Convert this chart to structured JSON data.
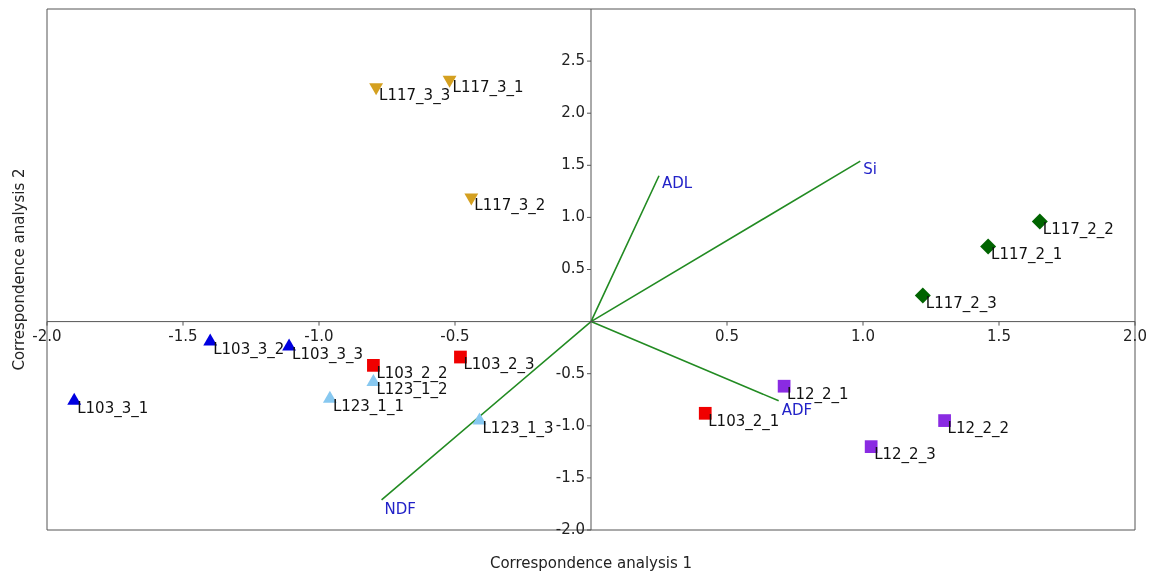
{
  "chart_data": {
    "type": "scatter",
    "xlabel": "Correspondence analysis 1",
    "ylabel": "Correspondence analysis 2",
    "xlim": [
      -2,
      2
    ],
    "ylim": [
      -2,
      3
    ],
    "xticks": [
      {
        "value": -2,
        "label": "-2.0"
      },
      {
        "value": -1.5,
        "label": "-1.5"
      },
      {
        "value": -1,
        "label": "-1.0"
      },
      {
        "value": -0.5,
        "label": "-0.5"
      },
      {
        "value": 0.5,
        "label": "0.5"
      },
      {
        "value": 1,
        "label": "1.0"
      },
      {
        "value": 1.5,
        "label": "1.5"
      },
      {
        "value": 2,
        "label": "2.0"
      }
    ],
    "yticks": [
      {
        "value": -2,
        "label": "-2.0"
      },
      {
        "value": -1.5,
        "label": "-1.5"
      },
      {
        "value": -1,
        "label": "-1.0"
      },
      {
        "value": -0.5,
        "label": "-0.5"
      },
      {
        "value": 0.5,
        "label": "0.5"
      },
      {
        "value": 1,
        "label": "1.0"
      },
      {
        "value": 1.5,
        "label": "1.5"
      },
      {
        "value": 2,
        "label": "2.0"
      },
      {
        "value": 2.5,
        "label": "2.5"
      }
    ],
    "legend": false,
    "series": [
      {
        "type": "scatter",
        "marker": "triangle",
        "color": "#0000e0",
        "x": [
          -1.9,
          -1.4,
          -1.11
        ],
        "values": [
          -0.76,
          -0.19,
          -0.24
        ]
      },
      {
        "type": "scatter",
        "marker": "triangle",
        "color": "#87c8f0",
        "x": [
          -0.96,
          -0.8,
          -0.41
        ],
        "values": [
          -0.74,
          -0.58,
          -0.95
        ]
      },
      {
        "type": "scatter",
        "marker": "triangle_down",
        "color": "#d4a020",
        "x": [
          -0.52,
          -0.44,
          -0.79
        ],
        "values": [
          2.32,
          1.19,
          2.25
        ]
      },
      {
        "type": "scatter",
        "marker": "square",
        "color": "#f00000",
        "x": [
          0.42,
          -0.8,
          -0.48
        ],
        "values": [
          -0.88,
          -0.42,
          -0.34
        ]
      },
      {
        "type": "scatter",
        "marker": "square",
        "color": "#8a2be2",
        "x": [
          0.71,
          1.3,
          1.03
        ],
        "values": [
          -0.62,
          -0.95,
          -1.2
        ]
      },
      {
        "type": "scatter",
        "marker": "diamond",
        "color": "#006400",
        "x": [
          1.46,
          1.65,
          1.22
        ],
        "values": [
          0.72,
          0.96,
          0.25
        ]
      },
      {
        "type": "line",
        "marker": "none",
        "color": "#228b22",
        "x": [
          0,
          0.25,
          null,
          0,
          0.99,
          null,
          0,
          0.69,
          null,
          0,
          -0.77
        ],
        "values": [
          0,
          1.4,
          null,
          0,
          1.54,
          null,
          0,
          -0.76,
          null,
          0,
          -1.71
        ]
      }
    ],
    "annotations": [
      {
        "text": "ADL",
        "x": 0.25,
        "y": 1.4
      },
      {
        "text": "Si",
        "x": 0.99,
        "y": 1.54
      },
      {
        "text": "ADF",
        "x": 0.69,
        "y": -0.76
      },
      {
        "text": "NDF",
        "x": -0.77,
        "y": -1.71
      },
      {
        "text": "L103_3_1",
        "x": -1.9,
        "y": -0.76
      },
      {
        "text": "L103_3_2",
        "x": -1.4,
        "y": -0.19
      },
      {
        "text": "L103_3_3",
        "x": -1.11,
        "y": -0.24
      },
      {
        "text": "L123_1_1",
        "x": -0.96,
        "y": -0.74
      },
      {
        "text": "L123_1_2",
        "x": -0.8,
        "y": -0.58
      },
      {
        "text": "L123_1_3",
        "x": -0.41,
        "y": -0.95
      },
      {
        "text": "L117_3_1",
        "x": -0.52,
        "y": 2.32
      },
      {
        "text": "L117_3_2",
        "x": -0.44,
        "y": 1.19
      },
      {
        "text": "L117_3_3",
        "x": -0.79,
        "y": 2.25
      },
      {
        "text": "L103_2_1",
        "x": 0.42,
        "y": -0.88
      },
      {
        "text": "L103_2_2",
        "x": -0.8,
        "y": -0.42
      },
      {
        "text": "L103_2_3",
        "x": -0.48,
        "y": -0.34
      },
      {
        "text": "L12_2_1",
        "x": 0.71,
        "y": -0.62
      },
      {
        "text": "L12_2_2",
        "x": 1.3,
        "y": -0.95
      },
      {
        "text": "L12_2_3",
        "x": 1.03,
        "y": -1.2
      },
      {
        "text": "L117_2_1",
        "x": 1.46,
        "y": 0.72
      },
      {
        "text": "L117_2_2",
        "x": 1.65,
        "y": 0.96
      },
      {
        "text": "L117_2_3",
        "x": 1.22,
        "y": 0.25
      }
    ]
  }
}
